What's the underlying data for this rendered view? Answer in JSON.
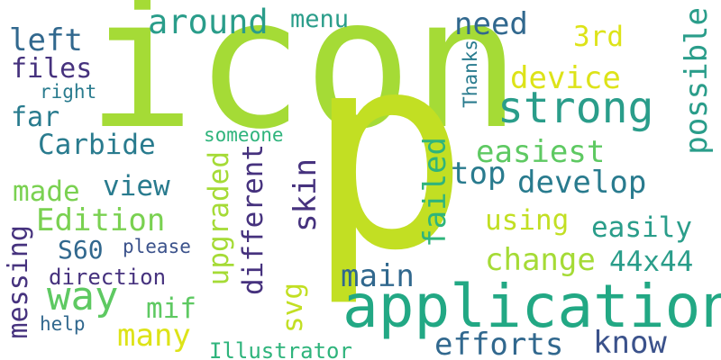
{
  "words": {
    "icon": "icon",
    "p": "p",
    "application": "application",
    "strong": "strong",
    "around": "around",
    "menu": "menu",
    "need": "need",
    "third": "3rd",
    "left": "left",
    "files": "files",
    "right": "right",
    "far": "far",
    "device": "device",
    "possible": "possible",
    "thanks": "Thanks",
    "carbide": "Carbide",
    "someone": "someone",
    "easiest": "easiest",
    "made": "made",
    "view": "view",
    "upgraded": "upgraded",
    "different": "different",
    "skin": "skin",
    "failed": "failed",
    "top": "top",
    "develop": "develop",
    "edition": "Edition",
    "using": "using",
    "easily": "easily",
    "s60": "S60",
    "please": "please",
    "change": "change",
    "size": "44x44",
    "messing": "messing",
    "direction": "direction",
    "way": "way",
    "main": "main",
    "svg": "svg",
    "mif": "mif",
    "help": "help",
    "many": "many",
    "illustrator": "Illustrator",
    "efforts": "efforts",
    "know": "know"
  },
  "colors": {
    "background": "#ffffff",
    "lime": "#a5db36",
    "yellow_green": "#c2df23",
    "yellow": "#dde318",
    "green": "#7ad151",
    "teal": "#22a884",
    "sea_green": "#2a9d8a",
    "blue_teal": "#297b8e",
    "slate": "#31688e",
    "dark_slate": "#3b528b",
    "indigo": "#46327e",
    "deep_purple": "#440154",
    "mid_green": "#2fb47c",
    "light_green": "#5ec962"
  }
}
